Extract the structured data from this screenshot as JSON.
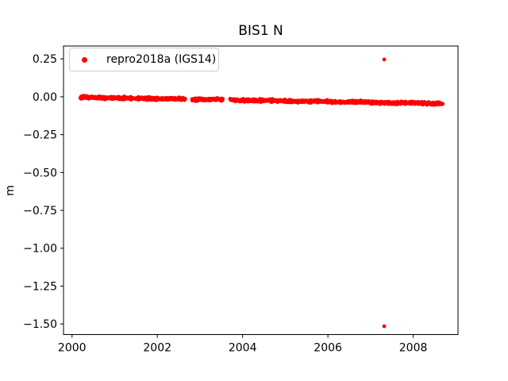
{
  "chart_data": {
    "type": "scatter",
    "title": "BIS1 N",
    "xlabel": "",
    "ylabel": "m",
    "point_color": "#ff0000",
    "axes_color": "#000000",
    "background_color": "#ffffff",
    "grid": false,
    "legend": {
      "label": "repro2018a (IGS14)",
      "location": "upper left",
      "marker": "red-dot",
      "marker_color": "#ff0000",
      "edge_color": "#cccccc"
    },
    "axis": {
      "xlim": [
        1999.8,
        2009.05
      ],
      "ylim": [
        -1.57,
        0.335
      ],
      "xticks": [
        2000,
        2002,
        2004,
        2006,
        2008
      ],
      "xtick_labels": [
        "2000",
        "2002",
        "2004",
        "2006",
        "2008"
      ],
      "yticks": [
        0.25,
        0.0,
        -0.25,
        -0.5,
        -0.75,
        -1.0,
        -1.25,
        -1.5
      ],
      "ytick_labels": [
        "0.25",
        "0.00",
        "−0.25",
        "−0.50",
        "−0.75",
        "−1.00",
        "−1.25",
        "−1.50"
      ]
    },
    "series": [
      {
        "name": "repro2018a (IGS14)",
        "color": "#ff0000",
        "marker": "point",
        "point_interval_years": 0.0041,
        "noise_std_m": 0.005,
        "description": "dense daily position time series near 0 m with slow linear drift downward and two data gaps",
        "segments": [
          {
            "x_start": 2000.19,
            "x_end": 2002.66,
            "value_start": -0.004,
            "value_end": -0.016
          },
          {
            "x_start": 2002.81,
            "x_end": 2003.54,
            "value_start": -0.0165,
            "value_end": -0.02
          },
          {
            "x_start": 2003.7,
            "x_end": 2008.7,
            "value_start": -0.021,
            "value_end": -0.045
          }
        ],
        "gaps": [
          [
            2002.66,
            2002.81
          ],
          [
            2003.54,
            2003.7
          ]
        ],
        "outliers": [
          {
            "x": 2007.32,
            "y": 0.246
          },
          {
            "x": 2007.32,
            "y": -1.515
          }
        ]
      }
    ]
  }
}
